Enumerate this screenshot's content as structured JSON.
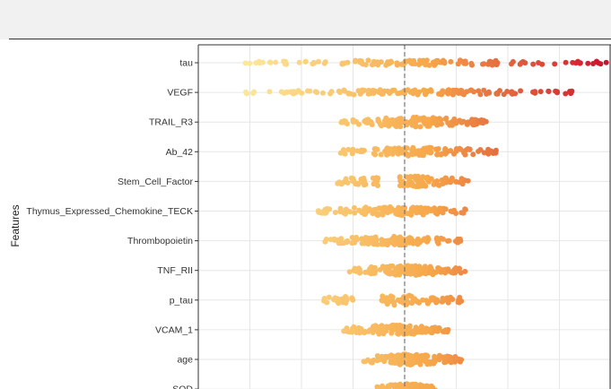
{
  "colors": {
    "low": "#fce89a",
    "mid": "#f7a84a",
    "high": "#c8102e",
    "grid": "#e6e6e6",
    "frame": "#333333",
    "zero_line": "#777777"
  },
  "chart_data": {
    "type": "beeswarm",
    "title": "",
    "xlabel": "",
    "ylabel": "Features",
    "xlim": [
      -4.0,
      4.0
    ],
    "zero_line_at": 0,
    "grid": true,
    "features": [
      {
        "name": "tau",
        "min": -3.1,
        "max": 4.0,
        "spread": 5,
        "gaps": []
      },
      {
        "name": "VEGF",
        "min": -3.1,
        "max": 3.25,
        "spread": 5,
        "gaps": []
      },
      {
        "name": "TRAIL_R3",
        "min": -1.25,
        "max": 1.6,
        "spread": 9,
        "gaps": []
      },
      {
        "name": "Ab_42",
        "min": -1.25,
        "max": 1.8,
        "spread": 8,
        "gaps": []
      },
      {
        "name": "Stem_Cell_Factor",
        "min": -1.3,
        "max": 1.3,
        "spread": 10,
        "gaps": [
          [
            -0.5,
            -0.1
          ]
        ]
      },
      {
        "name": "Thymus_Expressed_Chemokine_TECK",
        "min": -1.7,
        "max": 1.2,
        "spread": 8,
        "gaps": []
      },
      {
        "name": "Thrombopoietin",
        "min": -1.6,
        "max": 1.15,
        "spread": 8,
        "gaps": []
      },
      {
        "name": "TNF_RII",
        "min": -1.1,
        "max": 1.25,
        "spread": 9,
        "gaps": []
      },
      {
        "name": "p_tau",
        "min": -1.65,
        "max": 1.1,
        "spread": 10,
        "gaps": [
          [
            -0.9,
            -0.45
          ]
        ]
      },
      {
        "name": "VCAM_1",
        "min": -1.2,
        "max": 0.85,
        "spread": 9,
        "gaps": []
      },
      {
        "name": "age",
        "min": -0.85,
        "max": 1.1,
        "spread": 10,
        "gaps": []
      },
      {
        "name": "SOD",
        "min": -0.55,
        "max": 0.6,
        "spread": 10,
        "gaps": []
      }
    ]
  }
}
